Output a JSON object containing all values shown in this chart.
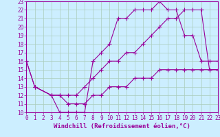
{
  "xlabel": "Windchill (Refroidissement éolien,°C)",
  "bg_color": "#cceeff",
  "grid_color": "#aaccbb",
  "line_color": "#990099",
  "xmin": 0,
  "xmax": 23,
  "ymin": 10,
  "ymax": 23,
  "series1_x": [
    0,
    1,
    3,
    4,
    5,
    6,
    7,
    8,
    9,
    10,
    11,
    12,
    13,
    14,
    15,
    16,
    17,
    18,
    19,
    20,
    21,
    22,
    23
  ],
  "series1_y": [
    16,
    13,
    12,
    10,
    10,
    10,
    10,
    16,
    17,
    18,
    21,
    21,
    22,
    22,
    22,
    23,
    22,
    22,
    19,
    19,
    16,
    16,
    16
  ],
  "series2_x": [
    0,
    1,
    3,
    4,
    5,
    6,
    7,
    8,
    9,
    10,
    11,
    12,
    13,
    14,
    15,
    16,
    17,
    18,
    19,
    20,
    21,
    22,
    23
  ],
  "series2_y": [
    16,
    13,
    12,
    12,
    12,
    12,
    13,
    14,
    15,
    16,
    16,
    17,
    17,
    18,
    19,
    20,
    21,
    21,
    22,
    22,
    22,
    15,
    15
  ],
  "series3_x": [
    1,
    3,
    4,
    5,
    6,
    7,
    8,
    9,
    10,
    11,
    12,
    13,
    14,
    15,
    16,
    17,
    18,
    19,
    20,
    21,
    22,
    23
  ],
  "series3_y": [
    13,
    12,
    12,
    11,
    11,
    11,
    12,
    12,
    13,
    13,
    13,
    14,
    14,
    14,
    15,
    15,
    15,
    15,
    15,
    15,
    15,
    15
  ],
  "tick_fontsize": 5.5,
  "xlabel_fontsize": 6.5
}
